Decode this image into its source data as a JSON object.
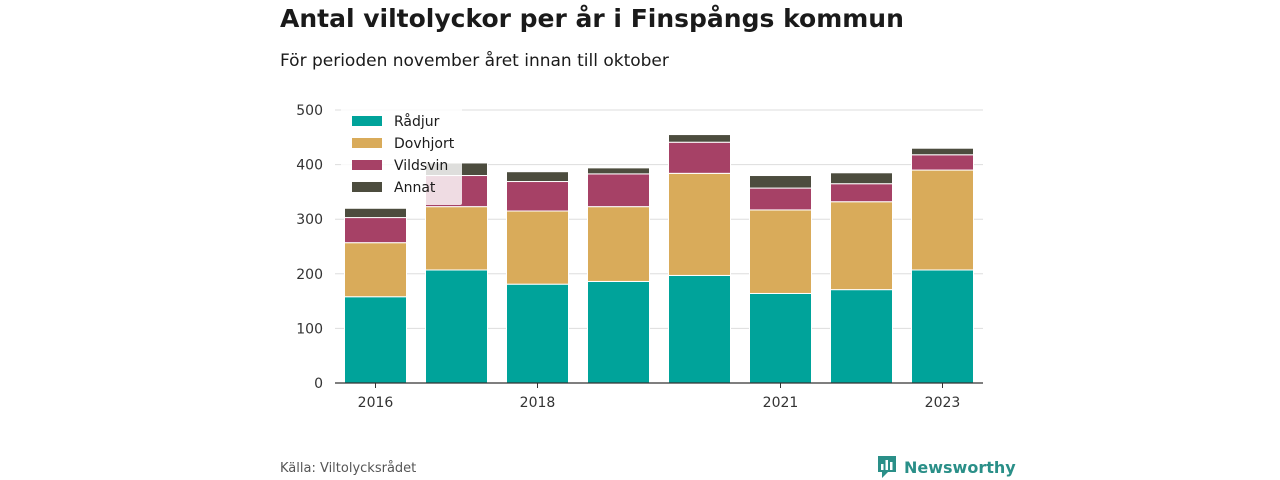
{
  "title": "Antal viltolyckor per år i Finspångs kommun",
  "subtitle": "För perioden november året innan till oktober",
  "source": "Källa: Viltolycksrådet",
  "brand": {
    "name": "Newsworthy",
    "icon": "newsworthy-logo-icon",
    "color": "#2a8f88"
  },
  "chart_data": {
    "type": "bar",
    "stacked": true,
    "categories": [
      "2016",
      "2017",
      "2018",
      "2019",
      "2020",
      "2021",
      "2022",
      "2023"
    ],
    "x_tick_labels": [
      "2016",
      "",
      "2018",
      "",
      "",
      "2021",
      "",
      "2023"
    ],
    "series": [
      {
        "name": "Rådjur",
        "color": "#00a39a",
        "values": [
          158,
          207,
          181,
          186,
          197,
          164,
          171,
          207
        ]
      },
      {
        "name": "Dovhjort",
        "color": "#d9ab5a",
        "values": [
          99,
          116,
          134,
          137,
          187,
          153,
          161,
          183
        ]
      },
      {
        "name": "Vildsvin",
        "color": "#a64166",
        "values": [
          46,
          57,
          54,
          60,
          57,
          40,
          33,
          28
        ]
      },
      {
        "name": "Annat",
        "color": "#4c4c3e",
        "values": [
          17,
          23,
          18,
          11,
          14,
          23,
          20,
          12
        ]
      }
    ],
    "ylim": [
      0,
      500
    ],
    "yticks": [
      0,
      100,
      200,
      300,
      400,
      500
    ],
    "xlabel": "",
    "ylabel": "",
    "grid": true,
    "legend": "top-left"
  }
}
